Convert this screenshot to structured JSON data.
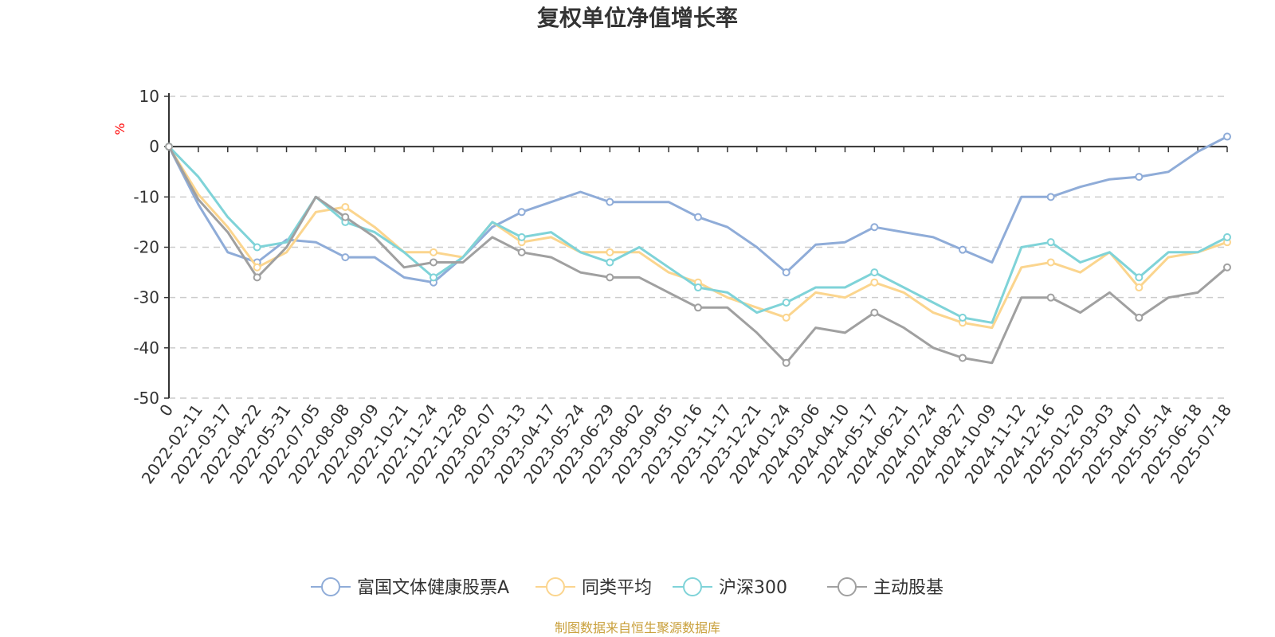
{
  "chart_data": {
    "type": "line",
    "title": "复权单位净值增长率",
    "y_unit": "%",
    "y_unit_color": "#ff0000",
    "ylim": [
      -50,
      10
    ],
    "y_ticks": [
      "10",
      "0",
      "-10",
      "-20",
      "-30",
      "-40",
      "-50"
    ],
    "y_tick_values": [
      10,
      0,
      -10,
      -20,
      -30,
      -40,
      -50
    ],
    "grid": "horizontal dashed",
    "x_tick_labels": [
      "0",
      "2022-02-11",
      "2022-03-17",
      "2022-04-22",
      "2022-05-31",
      "2022-07-05",
      "2022-08-08",
      "2022-09-09",
      "2022-10-21",
      "2022-11-24",
      "2022-12-28",
      "2023-02-07",
      "2023-03-13",
      "2023-04-17",
      "2023-05-24",
      "2023-06-29",
      "2023-08-02",
      "2023-09-05",
      "2023-10-16",
      "2023-11-17",
      "2023-12-21",
      "2024-01-24",
      "2024-03-06",
      "2024-04-10",
      "2024-05-17",
      "2024-06-21",
      "2024-07-24",
      "2024-08-27",
      "2024-10-09",
      "2024-11-12",
      "2024-12-16",
      "2025-01-20",
      "2025-03-03",
      "2025-04-07",
      "2025-05-14",
      "2025-06-18",
      "2025-07-18"
    ],
    "legend_position": "bottom",
    "series": [
      {
        "name": "富国文体健康股票A",
        "color": "#8facd8",
        "values": [
          0,
          -11.5,
          -21,
          -23,
          -18.5,
          -19,
          -22,
          -22,
          -26,
          -27,
          -22,
          -16,
          -13,
          -11,
          -9,
          -11,
          -11,
          -11,
          -14,
          -16,
          -20,
          -25,
          -19.5,
          -19,
          -16,
          -17,
          -18,
          -20.5,
          -23,
          -10,
          -10,
          -8,
          -6.5,
          -6,
          -5,
          -1,
          2
        ]
      },
      {
        "name": "同类平均",
        "color": "#fbd58e",
        "values": [
          0,
          -9.5,
          -16,
          -24,
          -21,
          -13,
          -12,
          -16,
          -21,
          -21,
          -22,
          -15,
          -19,
          -18,
          -21,
          -21,
          -21,
          -25,
          -27,
          -30,
          -32,
          -34,
          -29,
          -30,
          -27,
          -29,
          -33,
          -35,
          -36,
          -24,
          -23,
          -25,
          -21,
          -28,
          -22,
          -21,
          -19
        ]
      },
      {
        "name": "沪深300",
        "color": "#7fd3d8",
        "values": [
          0,
          -6,
          -14,
          -20,
          -19,
          -10,
          -15,
          -17,
          -21,
          -26,
          -22,
          -15,
          -18,
          -17,
          -21,
          -23,
          -20,
          -24,
          -28,
          -29,
          -33,
          -31,
          -28,
          -28,
          -25,
          -28,
          -31,
          -34,
          -35,
          -20,
          -19,
          -23,
          -21,
          -26,
          -21,
          -21,
          -18
        ]
      },
      {
        "name": "主动股基",
        "color": "#a0a0a0",
        "values": [
          0,
          -10.5,
          -17,
          -26,
          -20,
          -10,
          -14,
          -18,
          -24,
          -23,
          -23,
          -18,
          -21,
          -22,
          -25,
          -26,
          -26,
          -29,
          -32,
          -32,
          -37,
          -43,
          -36,
          -37,
          -33,
          -36,
          -40,
          -42,
          -43,
          -30,
          -30,
          -33,
          -29,
          -34,
          -30,
          -29,
          -24
        ]
      }
    ]
  },
  "footer": {
    "source_text": "制图数据来自恒生聚源数据库",
    "source_color": "#c9a03c"
  }
}
